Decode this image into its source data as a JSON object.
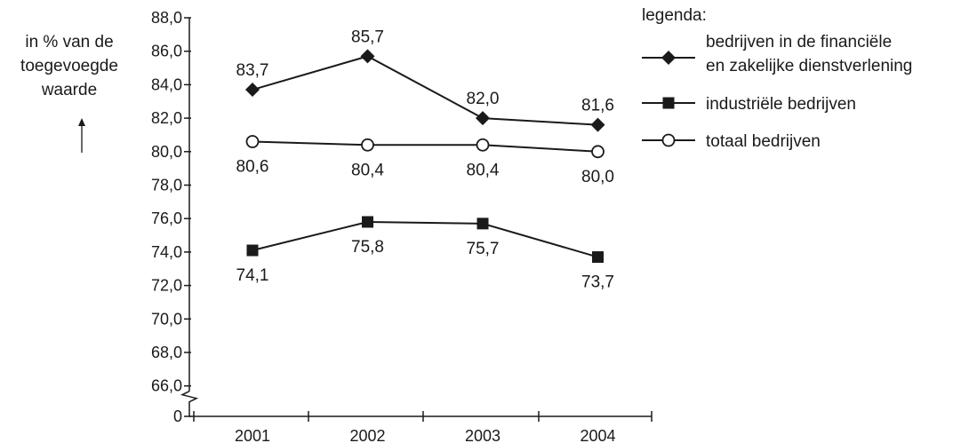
{
  "chart_data": {
    "type": "line",
    "x": [
      "2001",
      "2002",
      "2003",
      "2004"
    ],
    "ylabel": [
      "in % van de",
      "toegevoegde",
      "waarde"
    ],
    "ylim": [
      66,
      88
    ],
    "y_ticks": [
      "0",
      "66,0",
      "68,0",
      "70,0",
      "72,0",
      "74,0",
      "76,0",
      "78,0",
      "80,0",
      "82,0",
      "84,0",
      "86,0",
      "88,0"
    ],
    "axis_break": true,
    "grid": false,
    "legend": {
      "title": "legenda:",
      "placement": "top-right"
    },
    "series": [
      {
        "name": "bedrijven in de financiële en zakelijke dienstverlening",
        "name_lines": [
          "bedrijven in de financiële",
          "en zakelijke dienstverlening"
        ],
        "marker": "diamond",
        "values": [
          83.7,
          85.7,
          82.0,
          81.6
        ],
        "labels": [
          "83,7",
          "85,7",
          "82,0",
          "81,6"
        ],
        "label_position": "above"
      },
      {
        "name": "industriële bedrijven",
        "name_lines": [
          "industriële bedrijven"
        ],
        "marker": "square",
        "values": [
          74.1,
          75.8,
          75.7,
          73.7
        ],
        "labels": [
          "74,1",
          "75,8",
          "75,7",
          "73,7"
        ],
        "label_position": "below"
      },
      {
        "name": "totaal bedrijven",
        "name_lines": [
          "totaal bedrijven"
        ],
        "marker": "circle",
        "values": [
          80.6,
          80.4,
          80.4,
          80.0
        ],
        "labels": [
          "80,6",
          "80,4",
          "80,4",
          "80,0"
        ],
        "label_position": "below"
      }
    ]
  }
}
